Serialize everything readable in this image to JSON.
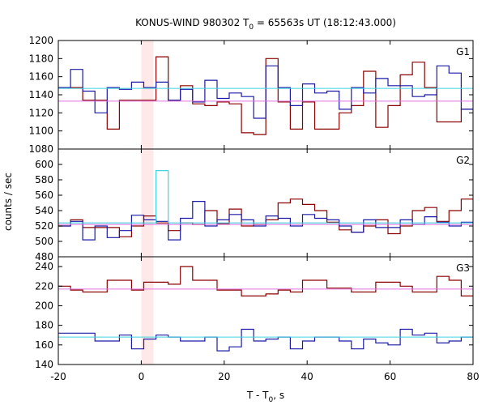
{
  "chart_data": {
    "type": "line",
    "title": {
      "prefix": "KONUS-WIND 980302 T",
      "sub": "0",
      "suffix": " = 65563s UT (18:12:43.000)"
    },
    "xlabel": {
      "prefix": "T - T",
      "sub": "0",
      "suffix": ", s"
    },
    "ylabel": "counts / sec",
    "xlim": [
      -20,
      80
    ],
    "xticks": [
      -20,
      0,
      20,
      40,
      60,
      80
    ],
    "highlight_band": {
      "x": [
        0,
        2.944
      ],
      "color": "#ffe8e8"
    },
    "bin_start": -20,
    "bin_width": 2.944,
    "colors": {
      "red": "#8b0000",
      "blue": "#1a1aa6",
      "cyan": "#40d0e0",
      "pink": "#e070e0"
    },
    "panels": [
      {
        "label": "G1",
        "ylim": [
          1080,
          1200
        ],
        "yticks": [
          1080,
          1100,
          1120,
          1140,
          1160,
          1180,
          1200
        ],
        "series": [
          {
            "color": "red",
            "values": [
              1148,
              1148,
              1134,
              1134,
              1102,
              1134,
              1134,
              1134,
              1182,
              1134,
              1150,
              1130,
              1128,
              1132,
              1130,
              1098,
              1096,
              1180,
              1132,
              1102,
              1132,
              1102,
              1102,
              1120,
              1128,
              1166,
              1104,
              1128,
              1162,
              1176,
              1148,
              1110,
              1110,
              1124,
              1126,
              1110,
              1126,
              1126,
              1132,
              1166,
              1130
            ]
          },
          {
            "color": "blue",
            "values": [
              1148,
              1168,
              1144,
              1120,
              1148,
              1146,
              1154,
              1148,
              1154,
              1134,
              1146,
              1132,
              1156,
              1136,
              1142,
              1138,
              1114,
              1172,
              1148,
              1128,
              1152,
              1142,
              1144,
              1124,
              1148,
              1142,
              1158,
              1150,
              1150,
              1138,
              1140,
              1172,
              1164,
              1124,
              1162,
              1140,
              1162,
              1164,
              1124,
              1166,
              1150
            ]
          },
          {
            "color": "cyan",
            "level": 1147
          },
          {
            "color": "pink",
            "level": 1133
          }
        ]
      },
      {
        "label": "G2",
        "ylim": [
          480,
          620
        ],
        "yticks": [
          480,
          500,
          520,
          540,
          560,
          580,
          600
        ],
        "series": [
          {
            "color": "red",
            "values": [
              520,
              528,
              518,
              518,
              518,
              506,
              520,
              533,
              524,
              514,
              524,
              522,
              540,
              523,
              542,
              520,
              522,
              528,
              550,
              555,
              548,
              540,
              525,
              515,
              512,
              520,
              528,
              510,
              520,
              540,
              544,
              526,
              540,
              555,
              535,
              522,
              520,
              525,
              520,
              521,
              522
            ]
          },
          {
            "color": "blue",
            "values": [
              520,
              526,
              502,
              520,
              505,
              514,
              534,
              528,
              526,
              502,
              530,
              552,
              520,
              528,
              535,
              528,
              520,
              533,
              530,
              520,
              535,
              530,
              528,
              520,
              512,
              528,
              518,
              518,
              528,
              522,
              532,
              525,
              520,
              525,
              522,
              520,
              530,
              540,
              522,
              520,
              522
            ]
          },
          {
            "color": "cyan",
            "values": [
              524,
              524,
              524,
              524,
              524,
              524,
              524,
              524,
              592,
              524,
              524,
              524,
              524,
              524,
              524,
              524,
              524,
              524,
              524,
              524,
              524,
              524,
              524,
              524,
              524,
              524,
              524,
              524,
              524,
              524,
              524,
              524,
              524,
              524,
              524,
              524,
              524,
              524,
              524,
              524,
              524
            ]
          },
          {
            "color": "pink",
            "level": 522
          }
        ]
      },
      {
        "label": "G3",
        "ylim": [
          140,
          250
        ],
        "yticks": [
          140,
          160,
          180,
          200,
          220,
          240
        ],
        "series": [
          {
            "color": "red",
            "values": [
              220,
              216,
              214,
              214,
              226,
              226,
              216,
              224,
              224,
              222,
              240,
              226,
              226,
              216,
              216,
              210,
              210,
              212,
              216,
              214,
              226,
              226,
              218,
              218,
              214,
              214,
              224,
              224,
              220,
              214,
              214,
              230,
              226,
              210,
              210,
              210,
              220,
              220,
              218,
              214,
              216
            ]
          },
          {
            "color": "blue",
            "values": [
              172,
              172,
              172,
              164,
              164,
              170,
              156,
              166,
              170,
              168,
              164,
              164,
              168,
              154,
              158,
              176,
              164,
              166,
              168,
              156,
              164,
              168,
              168,
              164,
              156,
              166,
              162,
              160,
              176,
              170,
              172,
              162,
              164,
              168,
              166,
              168,
              166,
              170,
              166,
              166,
              168
            ]
          },
          {
            "color": "cyan",
            "level": 168
          },
          {
            "color": "pink",
            "level": 217
          }
        ]
      }
    ]
  }
}
